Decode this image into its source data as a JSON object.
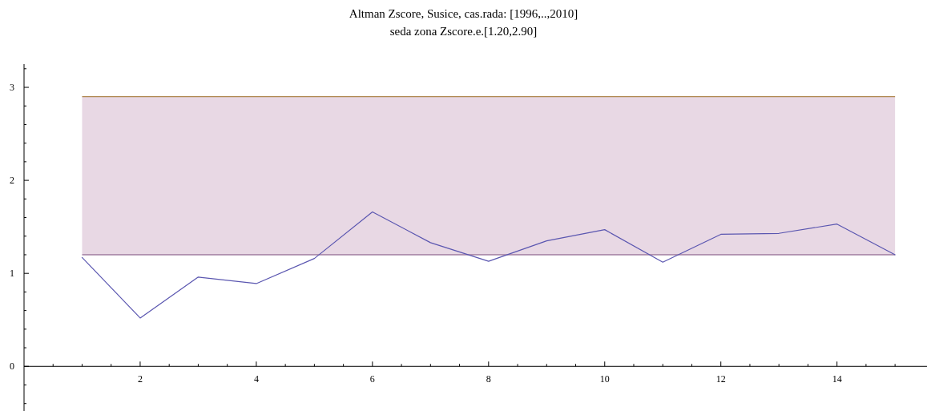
{
  "chart_data": {
    "type": "line",
    "title": "Altman Zscore, Susice, cas.rada: [1996,..,2010]",
    "subtitle": "seda zona Zscore.e.[1.20,2.90]",
    "x": [
      1,
      2,
      3,
      4,
      5,
      6,
      7,
      8,
      9,
      10,
      11,
      12,
      13,
      14,
      15
    ],
    "series": [
      {
        "color": "#5a56b0",
        "values": [
          1.17,
          0.52,
          0.96,
          0.89,
          1.16,
          1.66,
          1.33,
          1.13,
          1.35,
          1.47,
          1.12,
          1.42,
          1.43,
          1.53,
          1.2
        ]
      }
    ],
    "xlim": [
      0,
      15.55
    ],
    "ylim": [
      -0.48,
      3.25
    ],
    "xticks": [
      {
        "value": 0.5,
        "label": null
      },
      {
        "value": 1,
        "label": null
      },
      {
        "value": 1.5,
        "label": null
      },
      2,
      {
        "value": 2.5,
        "label": null
      },
      {
        "value": 3,
        "label": null
      },
      {
        "value": 3.5,
        "label": null
      },
      4,
      {
        "value": 4.5,
        "label": null
      },
      {
        "value": 5,
        "label": null
      },
      {
        "value": 5.5,
        "label": null
      },
      6,
      {
        "value": 6.5,
        "label": null
      },
      {
        "value": 7,
        "label": null
      },
      {
        "value": 7.5,
        "label": null
      },
      8,
      {
        "value": 8.5,
        "label": null
      },
      {
        "value": 9,
        "label": null
      },
      {
        "value": 9.5,
        "label": null
      },
      10,
      {
        "value": 10.5,
        "label": null
      },
      {
        "value": 11,
        "label": null
      },
      {
        "value": 11.5,
        "label": null
      },
      12,
      {
        "value": 12.5,
        "label": null
      },
      {
        "value": 13,
        "label": null
      },
      {
        "value": 13.5,
        "label": null
      },
      14,
      {
        "value": 14.5,
        "label": null
      },
      {
        "value": 15,
        "label": null
      }
    ],
    "yticks": [
      {
        "value": -0.4,
        "label": null
      },
      {
        "value": -0.2,
        "label": null
      },
      0,
      {
        "value": 0.2,
        "label": null
      },
      {
        "value": 0.4,
        "label": null
      },
      {
        "value": 0.6,
        "label": null
      },
      {
        "value": 0.8,
        "label": null
      },
      1,
      {
        "value": 1.2,
        "label": null
      },
      {
        "value": 1.4,
        "label": null
      },
      {
        "value": 1.6,
        "label": null
      },
      {
        "value": 1.8,
        "label": null
      },
      2,
      {
        "value": 2.2,
        "label": null
      },
      {
        "value": 2.4,
        "label": null
      },
      {
        "value": 2.6,
        "label": null
      },
      {
        "value": 2.8,
        "label": null
      },
      3,
      {
        "value": 3.2,
        "label": null
      }
    ],
    "bands": [
      {
        "axis": "y",
        "from": 1.2,
        "to": 2.9,
        "color": "#e8d8e4"
      }
    ],
    "ref_lines": [
      {
        "axis": "y",
        "value": 1.2,
        "color": "#7a4a7a"
      },
      {
        "axis": "y",
        "value": 2.9,
        "color": "#b08850"
      }
    ],
    "marker": "none",
    "line_style": "solid"
  }
}
